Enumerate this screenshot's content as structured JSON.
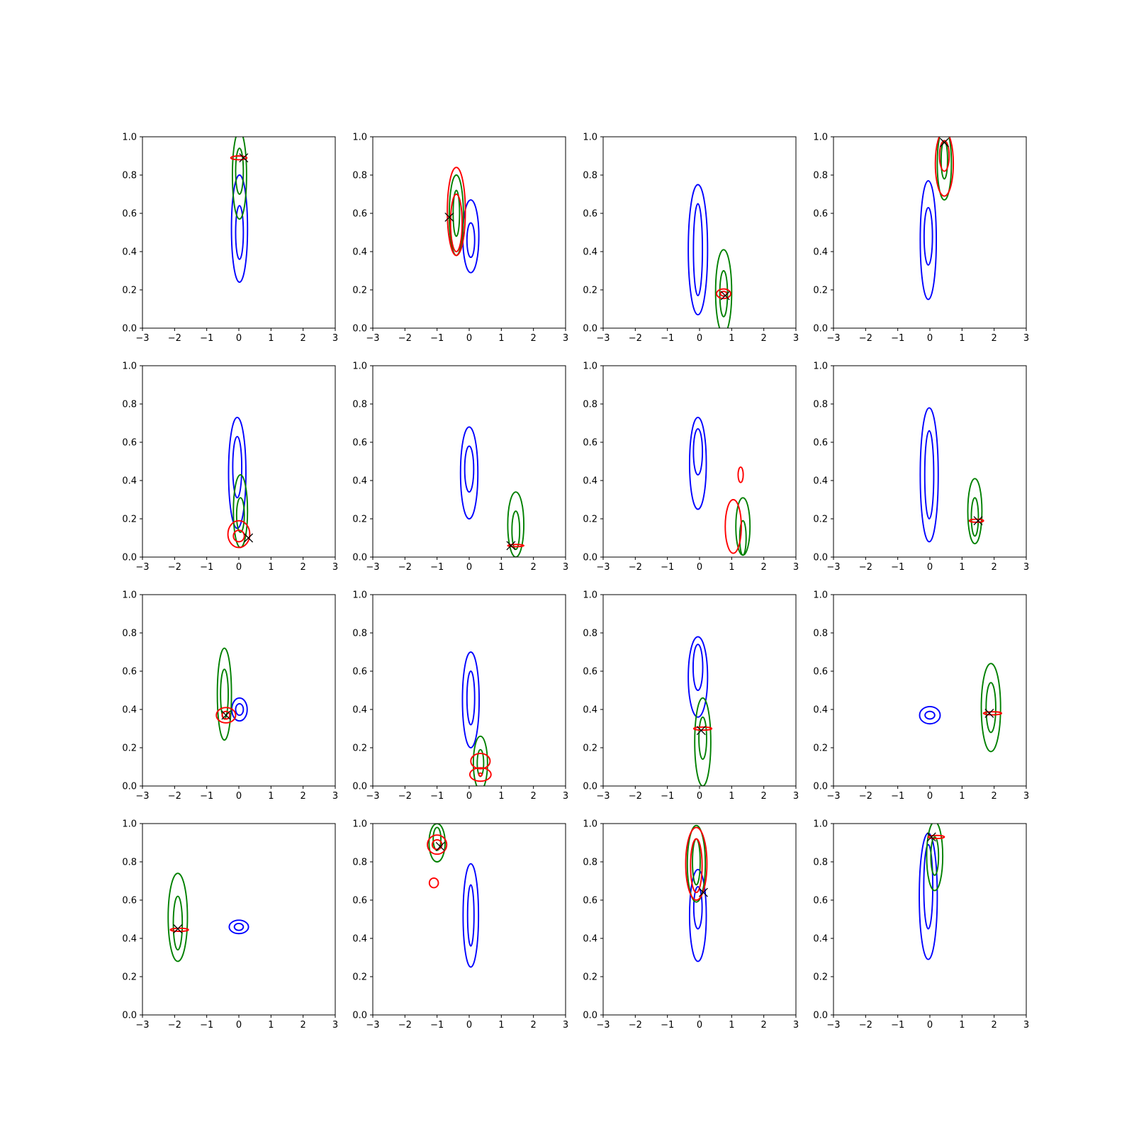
{
  "chart_data": {
    "type": "contour-grid",
    "rows": 4,
    "cols": 4,
    "xlim": [
      -3,
      3
    ],
    "ylim": [
      0,
      1
    ],
    "xticks": [
      -3,
      -2,
      -1,
      0,
      1,
      2,
      3
    ],
    "yticks": [
      0.0,
      0.2,
      0.4,
      0.6,
      0.8,
      1.0
    ],
    "xtick_labels": [
      "−3",
      "−2",
      "−1",
      "0",
      "1",
      "2",
      "3"
    ],
    "ytick_labels": [
      "0.0",
      "0.2",
      "0.4",
      "0.6",
      "0.8",
      "1.0"
    ],
    "colors": {
      "blue": "#0000ff",
      "green": "#008000",
      "red": "#ff0000",
      "marker": "#000000"
    },
    "panels": [
      {
        "marker": [
          0.15,
          0.89
        ],
        "contours": [
          {
            "color": "blue",
            "cx": 0.02,
            "cy": 0.52,
            "rx": 0.25,
            "ry": 0.28
          },
          {
            "color": "blue",
            "cx": 0.02,
            "cy": 0.5,
            "rx": 0.12,
            "ry": 0.14
          },
          {
            "color": "green",
            "cx": 0.02,
            "cy": 0.8,
            "rx": 0.22,
            "ry": 0.23
          },
          {
            "color": "green",
            "cx": 0.02,
            "cy": 0.82,
            "rx": 0.12,
            "ry": 0.12
          },
          {
            "color": "red",
            "cx": 0.0,
            "cy": 0.89,
            "rx": 0.25,
            "ry": 0.01
          }
        ]
      },
      {
        "marker": [
          -0.62,
          0.58
        ],
        "contours": [
          {
            "color": "blue",
            "cx": 0.05,
            "cy": 0.48,
            "rx": 0.25,
            "ry": 0.19
          },
          {
            "color": "blue",
            "cx": 0.05,
            "cy": 0.46,
            "rx": 0.12,
            "ry": 0.09
          },
          {
            "color": "green",
            "cx": -0.4,
            "cy": 0.59,
            "rx": 0.22,
            "ry": 0.21
          },
          {
            "color": "green",
            "cx": -0.4,
            "cy": 0.6,
            "rx": 0.1,
            "ry": 0.12
          },
          {
            "color": "red",
            "cx": -0.4,
            "cy": 0.61,
            "rx": 0.28,
            "ry": 0.23
          },
          {
            "color": "red",
            "cx": -0.4,
            "cy": 0.55,
            "rx": 0.18,
            "ry": 0.15
          }
        ]
      },
      {
        "marker": [
          0.8,
          0.17
        ],
        "contours": [
          {
            "color": "blue",
            "cx": -0.05,
            "cy": 0.41,
            "rx": 0.3,
            "ry": 0.34
          },
          {
            "color": "blue",
            "cx": -0.05,
            "cy": 0.41,
            "rx": 0.14,
            "ry": 0.24
          },
          {
            "color": "green",
            "cx": 0.75,
            "cy": 0.19,
            "rx": 0.25,
            "ry": 0.22
          },
          {
            "color": "green",
            "cx": 0.75,
            "cy": 0.18,
            "rx": 0.12,
            "ry": 0.12
          },
          {
            "color": "red",
            "cx": 0.75,
            "cy": 0.18,
            "rx": 0.22,
            "ry": 0.025
          },
          {
            "color": "red",
            "cx": 0.75,
            "cy": 0.18,
            "rx": 0.1,
            "ry": 0.012
          }
        ]
      },
      {
        "marker": [
          0.45,
          0.97
        ],
        "contours": [
          {
            "color": "blue",
            "cx": -0.05,
            "cy": 0.46,
            "rx": 0.25,
            "ry": 0.31
          },
          {
            "color": "blue",
            "cx": -0.05,
            "cy": 0.48,
            "rx": 0.13,
            "ry": 0.15
          },
          {
            "color": "green",
            "cx": 0.45,
            "cy": 0.86,
            "rx": 0.22,
            "ry": 0.19
          },
          {
            "color": "green",
            "cx": 0.45,
            "cy": 0.88,
            "rx": 0.1,
            "ry": 0.1
          },
          {
            "color": "red",
            "cx": 0.45,
            "cy": 0.86,
            "rx": 0.28,
            "ry": 0.17
          },
          {
            "color": "red",
            "cx": 0.45,
            "cy": 0.9,
            "rx": 0.15,
            "ry": 0.08
          }
        ]
      },
      {
        "marker": [
          0.3,
          0.1
        ],
        "contours": [
          {
            "color": "blue",
            "cx": -0.05,
            "cy": 0.44,
            "rx": 0.27,
            "ry": 0.29
          },
          {
            "color": "blue",
            "cx": -0.05,
            "cy": 0.47,
            "rx": 0.14,
            "ry": 0.16
          },
          {
            "color": "green",
            "cx": 0.05,
            "cy": 0.24,
            "rx": 0.22,
            "ry": 0.19
          },
          {
            "color": "green",
            "cx": 0.05,
            "cy": 0.22,
            "rx": 0.12,
            "ry": 0.09
          },
          {
            "color": "red",
            "cx": 0.0,
            "cy": 0.12,
            "rx": 0.34,
            "ry": 0.07
          },
          {
            "color": "red",
            "cx": 0.0,
            "cy": 0.11,
            "rx": 0.17,
            "ry": 0.03
          }
        ]
      },
      {
        "marker": [
          1.3,
          0.06
        ],
        "contours": [
          {
            "color": "blue",
            "cx": 0.0,
            "cy": 0.44,
            "rx": 0.27,
            "ry": 0.24
          },
          {
            "color": "blue",
            "cx": 0.0,
            "cy": 0.46,
            "rx": 0.14,
            "ry": 0.12
          },
          {
            "color": "green",
            "cx": 1.45,
            "cy": 0.17,
            "rx": 0.25,
            "ry": 0.17
          },
          {
            "color": "green",
            "cx": 1.45,
            "cy": 0.14,
            "rx": 0.12,
            "ry": 0.1
          },
          {
            "color": "red",
            "cx": 1.45,
            "cy": 0.06,
            "rx": 0.25,
            "ry": 0.006
          }
        ]
      },
      {
        "marker": null,
        "contours": [
          {
            "color": "blue",
            "cx": -0.05,
            "cy": 0.49,
            "rx": 0.26,
            "ry": 0.24
          },
          {
            "color": "blue",
            "cx": -0.05,
            "cy": 0.55,
            "rx": 0.14,
            "ry": 0.12
          },
          {
            "color": "green",
            "cx": 1.35,
            "cy": 0.16,
            "rx": 0.22,
            "ry": 0.15
          },
          {
            "color": "green",
            "cx": 1.35,
            "cy": 0.1,
            "rx": 0.1,
            "ry": 0.09
          },
          {
            "color": "red",
            "cx": 1.05,
            "cy": 0.16,
            "rx": 0.25,
            "ry": 0.14
          },
          {
            "color": "red",
            "cx": 1.28,
            "cy": 0.43,
            "rx": 0.08,
            "ry": 0.04
          }
        ]
      },
      {
        "marker": [
          1.5,
          0.19
        ],
        "contours": [
          {
            "color": "blue",
            "cx": -0.02,
            "cy": 0.43,
            "rx": 0.28,
            "ry": 0.35
          },
          {
            "color": "blue",
            "cx": -0.02,
            "cy": 0.43,
            "rx": 0.14,
            "ry": 0.23
          },
          {
            "color": "green",
            "cx": 1.4,
            "cy": 0.24,
            "rx": 0.22,
            "ry": 0.17
          },
          {
            "color": "green",
            "cx": 1.4,
            "cy": 0.21,
            "rx": 0.11,
            "ry": 0.1
          },
          {
            "color": "red",
            "cx": 1.45,
            "cy": 0.19,
            "rx": 0.22,
            "ry": 0.008
          }
        ]
      },
      {
        "marker": [
          -0.4,
          0.37
        ],
        "contours": [
          {
            "color": "blue",
            "cx": 0.02,
            "cy": 0.4,
            "rx": 0.24,
            "ry": 0.06
          },
          {
            "color": "blue",
            "cx": 0.02,
            "cy": 0.4,
            "rx": 0.12,
            "ry": 0.03
          },
          {
            "color": "green",
            "cx": -0.45,
            "cy": 0.48,
            "rx": 0.22,
            "ry": 0.24
          },
          {
            "color": "green",
            "cx": -0.45,
            "cy": 0.48,
            "rx": 0.12,
            "ry": 0.13
          },
          {
            "color": "red",
            "cx": -0.4,
            "cy": 0.37,
            "rx": 0.3,
            "ry": 0.04
          },
          {
            "color": "red",
            "cx": -0.4,
            "cy": 0.37,
            "rx": 0.12,
            "ry": 0.02
          }
        ]
      },
      {
        "marker": null,
        "contours": [
          {
            "color": "blue",
            "cx": 0.05,
            "cy": 0.45,
            "rx": 0.26,
            "ry": 0.25
          },
          {
            "color": "blue",
            "cx": 0.05,
            "cy": 0.46,
            "rx": 0.12,
            "ry": 0.14
          },
          {
            "color": "green",
            "cx": 0.35,
            "cy": 0.12,
            "rx": 0.22,
            "ry": 0.14
          },
          {
            "color": "green",
            "cx": 0.35,
            "cy": 0.12,
            "rx": 0.1,
            "ry": 0.07
          },
          {
            "color": "red",
            "cx": 0.35,
            "cy": 0.13,
            "rx": 0.3,
            "ry": 0.04
          },
          {
            "color": "red",
            "cx": 0.35,
            "cy": 0.06,
            "rx": 0.33,
            "ry": 0.035
          },
          {
            "color": "red",
            "cx": 0.35,
            "cy": 0.06,
            "rx": 0.05,
            "ry": 0.008
          }
        ]
      },
      {
        "marker": [
          0.05,
          0.29
        ],
        "contours": [
          {
            "color": "blue",
            "cx": -0.05,
            "cy": 0.57,
            "rx": 0.3,
            "ry": 0.21
          },
          {
            "color": "blue",
            "cx": -0.05,
            "cy": 0.62,
            "rx": 0.15,
            "ry": 0.12
          },
          {
            "color": "green",
            "cx": 0.1,
            "cy": 0.23,
            "rx": 0.25,
            "ry": 0.23
          },
          {
            "color": "green",
            "cx": 0.1,
            "cy": 0.25,
            "rx": 0.12,
            "ry": 0.11
          },
          {
            "color": "red",
            "cx": 0.1,
            "cy": 0.3,
            "rx": 0.28,
            "ry": 0.008
          }
        ]
      },
      {
        "marker": [
          1.85,
          0.38
        ],
        "contours": [
          {
            "color": "blue",
            "cx": 0.0,
            "cy": 0.37,
            "rx": 0.32,
            "ry": 0.045
          },
          {
            "color": "blue",
            "cx": 0.0,
            "cy": 0.37,
            "rx": 0.15,
            "ry": 0.02
          },
          {
            "color": "green",
            "cx": 1.9,
            "cy": 0.41,
            "rx": 0.3,
            "ry": 0.23
          },
          {
            "color": "green",
            "cx": 1.9,
            "cy": 0.41,
            "rx": 0.15,
            "ry": 0.13
          },
          {
            "color": "red",
            "cx": 1.95,
            "cy": 0.38,
            "rx": 0.28,
            "ry": 0.008
          }
        ]
      },
      {
        "marker": [
          -1.9,
          0.45
        ],
        "contours": [
          {
            "color": "blue",
            "cx": 0.0,
            "cy": 0.46,
            "rx": 0.3,
            "ry": 0.035
          },
          {
            "color": "blue",
            "cx": 0.0,
            "cy": 0.46,
            "rx": 0.14,
            "ry": 0.018
          },
          {
            "color": "green",
            "cx": -1.9,
            "cy": 0.51,
            "rx": 0.3,
            "ry": 0.23
          },
          {
            "color": "green",
            "cx": -1.9,
            "cy": 0.48,
            "rx": 0.14,
            "ry": 0.14
          },
          {
            "color": "red",
            "cx": -1.85,
            "cy": 0.445,
            "rx": 0.28,
            "ry": 0.008
          }
        ]
      },
      {
        "marker": [
          -0.9,
          0.88
        ],
        "contours": [
          {
            "color": "blue",
            "cx": 0.05,
            "cy": 0.52,
            "rx": 0.24,
            "ry": 0.27
          },
          {
            "color": "blue",
            "cx": 0.05,
            "cy": 0.52,
            "rx": 0.1,
            "ry": 0.16
          },
          {
            "color": "green",
            "cx": -1.0,
            "cy": 0.9,
            "rx": 0.25,
            "ry": 0.1
          },
          {
            "color": "green",
            "cx": -1.0,
            "cy": 0.92,
            "rx": 0.12,
            "ry": 0.06
          },
          {
            "color": "red",
            "cx": -1.0,
            "cy": 0.89,
            "rx": 0.3,
            "ry": 0.05
          },
          {
            "color": "red",
            "cx": -1.0,
            "cy": 0.89,
            "rx": 0.15,
            "ry": 0.025
          },
          {
            "color": "red",
            "cx": -1.1,
            "cy": 0.69,
            "rx": 0.14,
            "ry": 0.025
          }
        ]
      },
      {
        "marker": [
          0.12,
          0.64
        ],
        "contours": [
          {
            "color": "blue",
            "cx": -0.05,
            "cy": 0.52,
            "rx": 0.26,
            "ry": 0.24
          },
          {
            "color": "blue",
            "cx": -0.05,
            "cy": 0.56,
            "rx": 0.13,
            "ry": 0.11
          },
          {
            "color": "green",
            "cx": -0.1,
            "cy": 0.79,
            "rx": 0.28,
            "ry": 0.2
          },
          {
            "color": "green",
            "cx": -0.1,
            "cy": 0.8,
            "rx": 0.12,
            "ry": 0.12
          },
          {
            "color": "red",
            "cx": -0.1,
            "cy": 0.79,
            "rx": 0.33,
            "ry": 0.19
          },
          {
            "color": "red",
            "cx": -0.1,
            "cy": 0.78,
            "rx": 0.18,
            "ry": 0.14
          }
        ]
      },
      {
        "marker": [
          0.05,
          0.93
        ],
        "contours": [
          {
            "color": "blue",
            "cx": -0.05,
            "cy": 0.62,
            "rx": 0.28,
            "ry": 0.33
          },
          {
            "color": "blue",
            "cx": -0.05,
            "cy": 0.67,
            "rx": 0.14,
            "ry": 0.22
          },
          {
            "color": "green",
            "cx": 0.15,
            "cy": 0.83,
            "rx": 0.25,
            "ry": 0.18
          },
          {
            "color": "green",
            "cx": 0.15,
            "cy": 0.83,
            "rx": 0.12,
            "ry": 0.1
          },
          {
            "color": "red",
            "cx": 0.2,
            "cy": 0.93,
            "rx": 0.25,
            "ry": 0.008
          }
        ]
      }
    ]
  }
}
